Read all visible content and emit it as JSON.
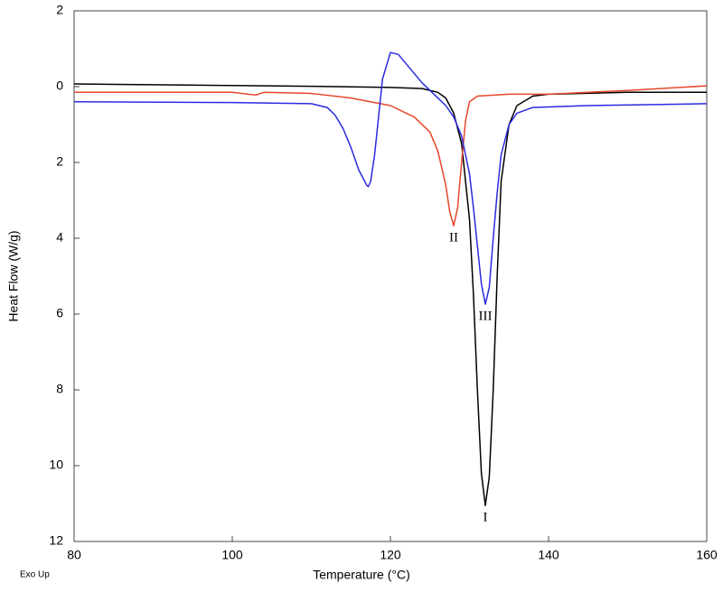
{
  "chart_data": {
    "type": "line",
    "xlabel": "Temperature (°C)",
    "ylabel": "Heat Flow (W/g)",
    "note": "Exo Up",
    "xlim": [
      80,
      160
    ],
    "xticks": [
      80,
      100,
      120,
      140,
      160
    ],
    "ylim": [
      -12,
      2
    ],
    "yticks": [
      2,
      0,
      {
        "value": -2,
        "label": "2"
      },
      {
        "value": -4,
        "label": "4"
      },
      {
        "value": -6,
        "label": "6"
      },
      {
        "value": -8,
        "label": "8"
      },
      {
        "value": -10,
        "label": "10"
      },
      {
        "value": -12,
        "label": "12"
      }
    ],
    "grid": false,
    "series": [
      {
        "color": "#000000",
        "x": [
          80,
          90,
          100,
          110,
          120,
          124,
          126,
          127,
          128,
          129,
          130,
          130.5,
          131,
          131.5,
          132,
          132.5,
          133,
          133.5,
          134,
          135,
          136,
          138,
          140,
          150,
          160
        ],
        "values": [
          0.07,
          0.05,
          0.03,
          0.01,
          -0.02,
          -0.05,
          -0.15,
          -0.3,
          -0.7,
          -1.5,
          -3.5,
          -5.5,
          -8,
          -10.2,
          -11.05,
          -10.3,
          -8,
          -5,
          -2.5,
          -1,
          -0.5,
          -0.25,
          -0.2,
          -0.15,
          -0.15
        ]
      },
      {
        "color": "#e8462a",
        "x": [
          80,
          100,
          102,
          103,
          104,
          110,
          115,
          120,
          123,
          125,
          126,
          127,
          127.5,
          128,
          128.5,
          129,
          129.5,
          130,
          131,
          135,
          140,
          150,
          160
        ],
        "values": [
          -0.15,
          -0.15,
          -0.2,
          -0.22,
          -0.15,
          -0.18,
          -0.3,
          -0.5,
          -0.8,
          -1.2,
          -1.7,
          -2.6,
          -3.3,
          -3.67,
          -3.2,
          -2,
          -0.9,
          -0.4,
          -0.25,
          -0.2,
          -0.2,
          -0.1,
          0.02
        ]
      },
      {
        "color": "#2a2ae0",
        "x": [
          80,
          100,
          110,
          112,
          113,
          114,
          115,
          116,
          117,
          117.2,
          117.5,
          118,
          118.5,
          119,
          120,
          121,
          122,
          124,
          126,
          127,
          128,
          129,
          130,
          130.5,
          131,
          131.5,
          132,
          132.5,
          133,
          133.5,
          134,
          135,
          136,
          138,
          145,
          160
        ],
        "values": [
          -0.4,
          -0.42,
          -0.45,
          -0.55,
          -0.75,
          -1.1,
          -1.6,
          -2.2,
          -2.6,
          -2.64,
          -2.5,
          -1.8,
          -0.8,
          0.2,
          0.9,
          0.85,
          0.6,
          0.1,
          -0.3,
          -0.5,
          -0.8,
          -1.3,
          -2.3,
          -3.2,
          -4.2,
          -5.2,
          -5.74,
          -5.3,
          -4,
          -2.8,
          -1.8,
          -1,
          -0.7,
          -0.55,
          -0.5,
          -0.45
        ]
      }
    ],
    "annotations": [
      {
        "text": "I"
      },
      {
        "text": "II"
      },
      {
        "text": "III"
      }
    ]
  }
}
